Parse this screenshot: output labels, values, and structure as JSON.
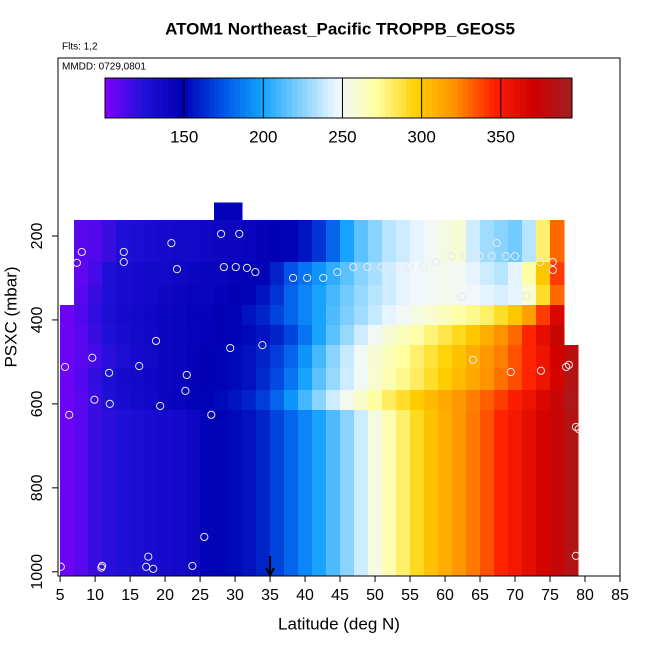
{
  "chart_data": {
    "type": "heatmap",
    "title": "ATOM1 Northeast_Pacific TROPPB_GEOS5",
    "annotations": [
      "Flts: 1,2",
      "MMDD: 0729,0801"
    ],
    "x_label": "Latitude (deg N)",
    "y_label": "PSXC (mbar)",
    "xlim": [
      4.7,
      85
    ],
    "xticks": [
      5,
      10,
      15,
      20,
      25,
      30,
      35,
      40,
      45,
      50,
      55,
      60,
      65,
      70,
      75,
      80,
      85
    ],
    "ylim": [
      1010,
      -224
    ],
    "yticks": [
      200,
      400,
      600,
      800,
      1000
    ],
    "clim": [
      100,
      395
    ],
    "cticks": [
      150,
      200,
      250,
      300,
      350
    ],
    "colormap": [
      "#8000ff",
      "#2010d8",
      "#0000b4",
      "#0050e6",
      "#10a0ff",
      "#80d0ff",
      "#f0f8ff",
      "#ffffa0",
      "#ffd000",
      "#ff9000",
      "#ff2000",
      "#d00000",
      "#a02020"
    ],
    "marker_latitude": 35,
    "x_edges": [
      5,
      7,
      9,
      11,
      13,
      15,
      17,
      19,
      21,
      23,
      25,
      27,
      29,
      31,
      33,
      35,
      37,
      39,
      41,
      43,
      45,
      47,
      49,
      51,
      53,
      55,
      57,
      59,
      61,
      63,
      65,
      67,
      69,
      71,
      73,
      75,
      77,
      79
    ],
    "y_edges": [
      120,
      162,
      262,
      317,
      364,
      412,
      460,
      514,
      567,
      614,
      1010
    ],
    "z": [
      [
        null,
        null,
        null,
        null,
        null,
        null,
        null,
        null,
        null,
        null,
        null,
        145,
        145,
        null,
        null,
        null,
        null,
        null,
        null,
        null,
        null,
        null,
        null,
        null,
        null,
        null,
        null,
        null,
        null,
        null,
        null,
        null,
        null,
        null,
        null,
        null,
        null
      ],
      [
        null,
        110,
        112,
        118,
        125,
        128,
        130,
        132,
        135,
        135,
        138,
        140,
        140,
        142,
        145,
        148,
        150,
        155,
        165,
        180,
        200,
        215,
        225,
        235,
        240,
        245,
        250,
        255,
        258,
        240,
        230,
        225,
        220,
        235,
        280,
        330,
        null
      ],
      [
        null,
        108,
        115,
        125,
        130,
        132,
        135,
        135,
        138,
        140,
        142,
        142,
        145,
        148,
        150,
        160,
        175,
        185,
        195,
        205,
        215,
        225,
        232,
        240,
        245,
        248,
        250,
        252,
        250,
        245,
        240,
        235,
        245,
        270,
        300,
        340,
        null
      ],
      [
        null,
        110,
        118,
        125,
        130,
        132,
        135,
        138,
        140,
        142,
        142,
        145,
        148,
        150,
        155,
        165,
        180,
        190,
        200,
        210,
        220,
        228,
        235,
        240,
        245,
        248,
        250,
        252,
        250,
        248,
        245,
        242,
        245,
        260,
        290,
        330,
        null
      ],
      [
        105,
        112,
        120,
        128,
        132,
        135,
        138,
        140,
        142,
        145,
        145,
        148,
        150,
        155,
        160,
        170,
        180,
        190,
        200,
        212,
        222,
        230,
        238,
        245,
        250,
        255,
        260,
        265,
        270,
        275,
        280,
        290,
        300,
        315,
        340,
        365,
        null
      ],
      [
        105,
        110,
        118,
        125,
        130,
        134,
        137,
        140,
        142,
        144,
        146,
        148,
        150,
        152,
        155,
        160,
        170,
        185,
        200,
        215,
        228,
        240,
        250,
        258,
        265,
        270,
        278,
        285,
        292,
        300,
        310,
        320,
        330,
        345,
        360,
        375,
        null
      ],
      [
        105,
        110,
        115,
        122,
        128,
        132,
        136,
        140,
        142,
        145,
        148,
        150,
        152,
        155,
        160,
        168,
        180,
        195,
        210,
        225,
        238,
        250,
        258,
        265,
        272,
        280,
        288,
        295,
        302,
        310,
        318,
        325,
        335,
        345,
        355,
        370,
        380
      ],
      [
        105,
        112,
        120,
        128,
        132,
        135,
        138,
        140,
        142,
        145,
        148,
        150,
        152,
        155,
        162,
        172,
        185,
        200,
        215,
        228,
        240,
        250,
        260,
        268,
        275,
        282,
        290,
        298,
        305,
        312,
        320,
        328,
        336,
        345,
        355,
        368,
        385
      ],
      [
        105,
        110,
        118,
        125,
        130,
        134,
        137,
        140,
        143,
        146,
        150,
        152,
        155,
        160,
        168,
        180,
        195,
        210,
        225,
        240,
        252,
        262,
        272,
        282,
        290,
        298,
        305,
        312,
        318,
        325,
        332,
        340,
        348,
        356,
        365,
        375,
        388
      ],
      [
        105,
        110,
        118,
        122,
        125,
        128,
        130,
        132,
        135,
        138,
        145,
        150,
        152,
        155,
        160,
        170,
        180,
        190,
        200,
        212,
        225,
        240,
        255,
        268,
        280,
        292,
        302,
        310,
        318,
        326,
        335,
        345,
        352,
        360,
        368,
        375,
        385
      ]
    ],
    "points": {
      "x": [
        8.1,
        7.4,
        14.1,
        14.1,
        20.9,
        21.7,
        28,
        30.6,
        28.4,
        30.1,
        31.7,
        32.9,
        38.3,
        40.3,
        42.6,
        44.6,
        46.9,
        48.9,
        50.9,
        52.9,
        54.9,
        56.9,
        58.7,
        60.9,
        62.9,
        64.9,
        66.7,
        68.7,
        70,
        67.4,
        73.6,
        75.4,
        75.4,
        71.6,
        62.4,
        18.7,
        29.3,
        33.9,
        9.6,
        12,
        5.7,
        16.3,
        64,
        69.4,
        77.3,
        77.7,
        73.7,
        23.1,
        9.9,
        12.1,
        19.3,
        22.9,
        6.3,
        26.6,
        78.7,
        79.1,
        17.6,
        17.3,
        18.3,
        11,
        10.9,
        23.9,
        5.1,
        25.6,
        78.7
      ],
      "y": [
        238,
        264,
        238,
        262,
        217,
        279,
        195,
        195,
        274,
        274,
        276,
        286,
        300,
        300,
        300,
        286,
        274,
        274,
        274,
        274,
        274,
        274,
        262,
        248,
        248,
        248,
        248,
        248,
        248,
        217,
        262,
        281,
        262,
        343,
        345,
        450,
        467,
        460,
        490,
        526,
        512,
        510,
        495,
        524,
        512,
        507,
        521,
        531,
        590,
        600,
        605,
        569,
        626,
        626,
        655,
        660,
        964,
        988,
        993,
        986,
        990,
        986,
        988,
        917,
        962
      ]
    }
  }
}
